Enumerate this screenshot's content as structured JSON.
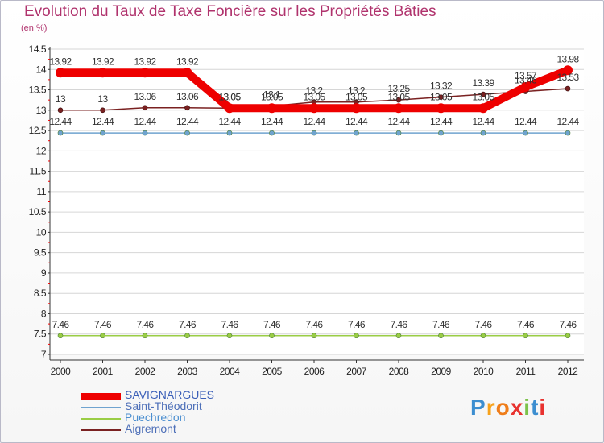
{
  "chart_data": {
    "type": "line",
    "title": "Evolution du Taux de Taxe Foncière sur les Propriétés Bâties",
    "ylabel": "(en %)",
    "xlabel": "",
    "categories": [
      "2000",
      "2001",
      "2002",
      "2003",
      "2004",
      "2005",
      "2006",
      "2007",
      "2008",
      "2009",
      "2010",
      "2011",
      "2012"
    ],
    "ylim": [
      7,
      14.5
    ],
    "yticks": [
      "7",
      "7.5",
      "8",
      "8.5",
      "9",
      "9.5",
      "10",
      "10.5",
      "11",
      "11.5",
      "12",
      "12.5",
      "13",
      "13.5",
      "14",
      "14.5"
    ],
    "series": [
      {
        "name": "SAVIGNARGUES",
        "color": "#ee0000",
        "values": [
          13.92,
          13.92,
          13.92,
          13.92,
          13.05,
          13.05,
          13.05,
          13.05,
          13.05,
          13.05,
          13.05,
          13.57,
          13.98
        ],
        "labels": [
          "13.92",
          "13.92",
          "13.92",
          "13.92",
          "13.05",
          "13.05",
          "13.05",
          "13.05",
          "13.05",
          "13.05",
          "13.05",
          "13.57",
          "13.98"
        ]
      },
      {
        "name": "Saint-Théodorit",
        "color": "#6fa3cf",
        "values": [
          12.44,
          12.44,
          12.44,
          12.44,
          12.44,
          12.44,
          12.44,
          12.44,
          12.44,
          12.44,
          12.44,
          12.44,
          12.44
        ],
        "labels": [
          "12.44",
          "12.44",
          "12.44",
          "12.44",
          "12.44",
          "12.44",
          "12.44",
          "12.44",
          "12.44",
          "12.44",
          "12.44",
          "12.44",
          "12.44"
        ]
      },
      {
        "name": "Puechredon",
        "color": "#9acd45",
        "values": [
          7.46,
          7.46,
          7.46,
          7.46,
          7.46,
          7.46,
          7.46,
          7.46,
          7.46,
          7.46,
          7.46,
          7.46,
          7.46
        ],
        "labels": [
          "7.46",
          "7.46",
          "7.46",
          "7.46",
          "7.46",
          "7.46",
          "7.46",
          "7.46",
          "7.46",
          "7.46",
          "7.46",
          "7.46",
          "7.46"
        ]
      },
      {
        "name": "Aigremont",
        "color": "#7a2121",
        "values": [
          13,
          13,
          13.06,
          13.06,
          13.05,
          13.1,
          13.2,
          13.2,
          13.25,
          13.32,
          13.39,
          13.46,
          13.53
        ],
        "labels": [
          "13",
          "13",
          "13.06",
          "13.06",
          "13.05",
          "13.1",
          "13.2",
          "13.2",
          "13.25",
          "13.32",
          "13.39",
          "13.46",
          "13.53"
        ]
      }
    ],
    "legend_position": "bottom-left",
    "grid": true
  },
  "logo": {
    "text": "Proxiti",
    "colors": [
      "#3c8ed0",
      "#f7a21b",
      "#ef7d1a",
      "#e8322f",
      "#7cc24a",
      "#3c8ed0",
      "#e8322f"
    ]
  }
}
